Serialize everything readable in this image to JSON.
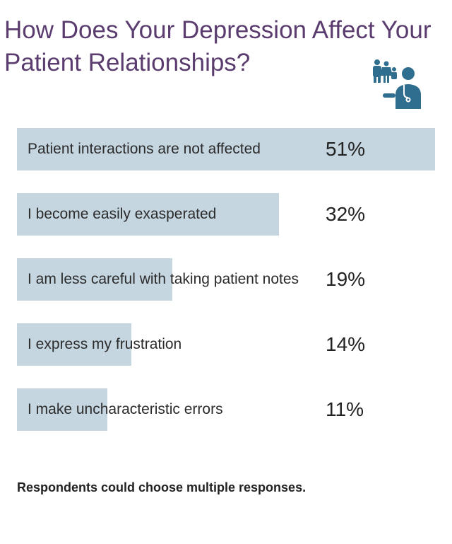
{
  "chart_data": {
    "type": "bar",
    "title": "How Does Your Depression Affect Your Patient Relationships?",
    "categories": [
      "Patient interactions are not affected",
      "I become easily exasperated",
      "I am less careful with taking patient notes",
      "I express my frustration",
      "I make uncharacteristic errors"
    ],
    "values": [
      51,
      32,
      19,
      14,
      11
    ],
    "value_labels": [
      "51%",
      "32%",
      "19%",
      "14%",
      "11%"
    ],
    "color": "#c5d6e1",
    "note": "Respondents could choose multiple responses."
  }
}
